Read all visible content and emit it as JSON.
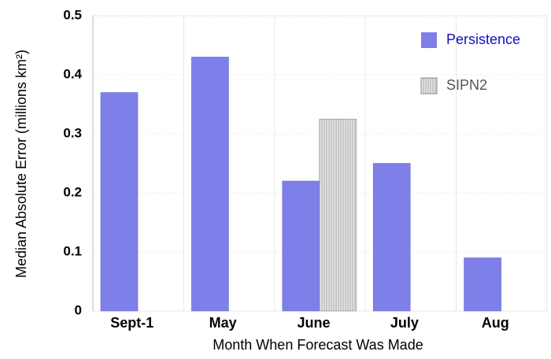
{
  "chart_data": {
    "type": "bar",
    "xlabel": "Month When Forecast Was Made",
    "ylabel": "Median Absolute Error (millions km²)",
    "categories": [
      "Sept-1",
      "May",
      "June",
      "July",
      "Aug"
    ],
    "series": [
      {
        "name": "Persistence",
        "color": "#7f7fea",
        "values": [
          0.37,
          0.43,
          0.22,
          0.25,
          0.09
        ]
      },
      {
        "name": "SIPN2",
        "color": "#d9d9d9",
        "hatch": true,
        "values": [
          null,
          null,
          0.325,
          null,
          null
        ]
      }
    ],
    "ylim": [
      0,
      0.5
    ],
    "yticks": [
      0,
      0.1,
      0.2,
      0.3,
      0.4,
      0.5
    ],
    "grid": true,
    "legend": "upper right"
  }
}
